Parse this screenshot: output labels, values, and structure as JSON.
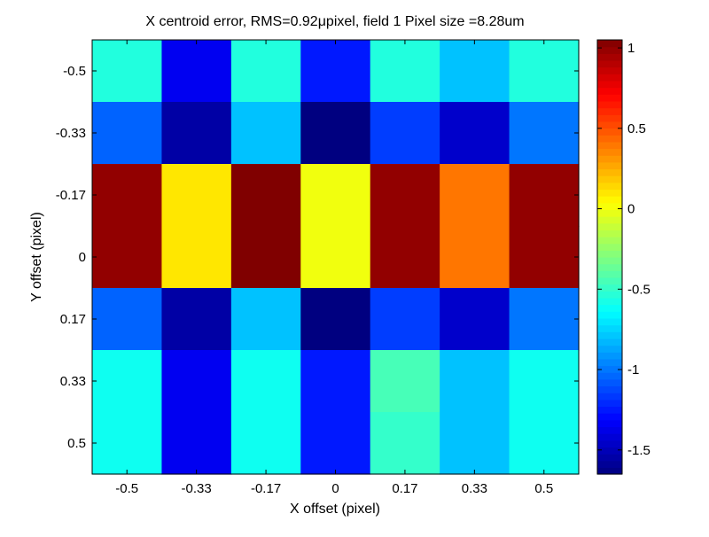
{
  "chart_data": {
    "type": "heatmap",
    "title": "X centroid error, RMS=0.92μpixel, field 1 Pixel size =8.28um",
    "xlabel": "X offset (pixel)",
    "ylabel": "Y offset (pixel)",
    "x_categories": [
      "-0.5",
      "-0.33",
      "-0.17",
      "0",
      "0.17",
      "0.33",
      "0.5"
    ],
    "y_categories": [
      "-0.5",
      "-0.33",
      "-0.17",
      "0",
      "0.17",
      "0.33",
      "0.5"
    ],
    "values": [
      [
        -0.55,
        -1.35,
        -0.55,
        -1.25,
        -0.55,
        -0.8,
        -0.55
      ],
      [
        -1.05,
        -1.55,
        -0.8,
        -1.65,
        -1.15,
        -1.45,
        -1.0
      ],
      [
        1.0,
        0.1,
        1.05,
        0.0,
        1.0,
        0.4,
        1.0
      ],
      [
        1.0,
        0.1,
        1.05,
        0.0,
        1.0,
        0.4,
        1.0
      ],
      [
        -1.05,
        -1.55,
        -0.8,
        -1.65,
        -1.15,
        -1.45,
        -1.0
      ],
      [
        -0.6,
        -1.35,
        -0.6,
        -1.25,
        -0.45,
        -0.8,
        -0.6
      ],
      [
        -0.6,
        -1.35,
        -0.6,
        -1.25,
        -0.5,
        -0.8,
        -0.6
      ]
    ],
    "colorbar": {
      "range": [
        -1.65,
        1.05
      ],
      "ticks": [
        1,
        0.5,
        0,
        -0.5,
        -1,
        -1.5
      ],
      "tick_labels": [
        "1",
        "0.5",
        "0",
        "-0.5",
        "-1",
        "-1.5"
      ],
      "colormap": "jet"
    }
  }
}
